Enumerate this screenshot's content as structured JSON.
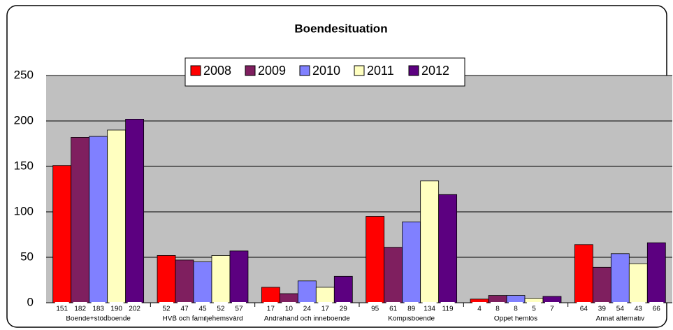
{
  "chart_data": {
    "type": "bar",
    "title": "Boendesituation",
    "categories": [
      "Boende+stödboende",
      "HVB och familjehemsvård",
      "Andrahand och inneboende",
      "Kompisboende",
      "Öppet hemlös",
      "Annat alternativ"
    ],
    "series": [
      {
        "name": "2008",
        "color": "#ff0000",
        "values": [
          151,
          52,
          17,
          95,
          4,
          64
        ]
      },
      {
        "name": "2009",
        "color": "#7f1f5f",
        "values": [
          182,
          47,
          10,
          61,
          8,
          39
        ]
      },
      {
        "name": "2010",
        "color": "#8080ff",
        "values": [
          183,
          45,
          24,
          89,
          8,
          54
        ]
      },
      {
        "name": "2011",
        "color": "#ffffc0",
        "values": [
          190,
          52,
          17,
          134,
          5,
          43
        ]
      },
      {
        "name": "2012",
        "color": "#5c0080",
        "values": [
          202,
          57,
          29,
          119,
          7,
          66
        ]
      }
    ],
    "ylim": [
      0,
      250
    ],
    "yticks": [
      0,
      50,
      100,
      150,
      200,
      250
    ],
    "grid": true,
    "legend": "top"
  }
}
